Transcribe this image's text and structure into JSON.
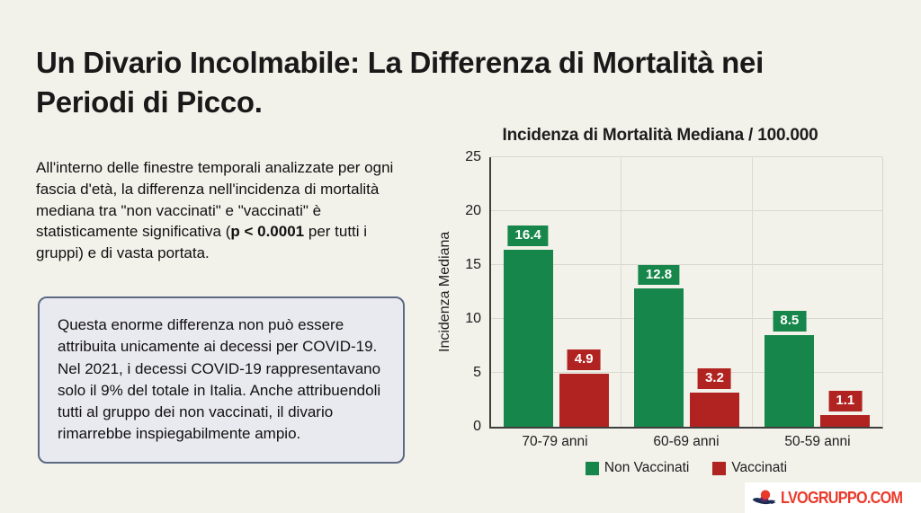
{
  "slide": {
    "title": "Un Divario Incolmabile: La Differenza di Mortalità nei Periodi di Picco.",
    "intro": {
      "pre": "All'interno delle finestre temporali analizzate per ogni fascia d'età, la differenza nell'incidenza di mortalità mediana tra \"non vaccinati\" e \"vaccinati\" è statisticamente significativa (",
      "bold": "p < 0.0001",
      "post": " per tutti i gruppi) e di vasta portata."
    },
    "callout": "Questa enorme differenza non può essere attribuita unicamente ai decessi per COVID-19. Nel 2021, i decessi COVID-19 rappresentavano solo il 9% del totale in Italia. Anche attribuendoli tutti al gruppo dei non vaccinati, il divario rimarrebbe inspiegabilmente ampio.",
    "watermark": "LVOGRUPPO.COM"
  },
  "colors": {
    "background": "#f2f1ea",
    "non_vaccinati_green": "#17864a",
    "vaccinati_red": "#b02320",
    "callout_bg": "#e9e9f0",
    "callout_border": "#5d6a84",
    "watermark_red": "#ea3a2b"
  },
  "chart_data": {
    "type": "bar",
    "title": "Incidenza di Mortalità Mediana / 100.000",
    "xlabel": "",
    "ylabel": "Incidenza Mediana",
    "categories": [
      "70-79 anni",
      "60-69 anni",
      "50-59 anni"
    ],
    "series": [
      {
        "name": "Non Vaccinati",
        "color": "#17864a",
        "values": [
          16.4,
          12.8,
          8.5
        ]
      },
      {
        "name": "Vaccinati",
        "color": "#b02320",
        "values": [
          4.9,
          3.2,
          1.1
        ]
      }
    ],
    "ylim": [
      0,
      25
    ],
    "yticks": [
      0,
      5,
      10,
      15,
      20,
      25
    ],
    "grid": true,
    "legend_position": "bottom",
    "value_labels": true
  }
}
